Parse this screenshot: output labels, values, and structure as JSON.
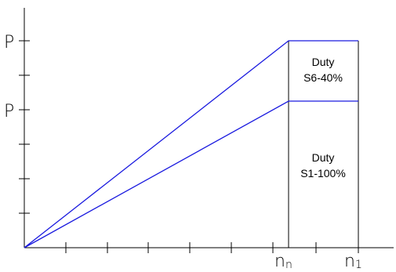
{
  "y_axis": {
    "labels": [
      "P",
      "P"
    ]
  },
  "x_axis": {
    "labels": [
      {
        "main": "n",
        "sub": "n"
      },
      {
        "main": "n",
        "sub": "1"
      }
    ]
  },
  "regions": [
    {
      "line1": "Duty",
      "line2": "S6-40%"
    },
    {
      "line1": "Duty",
      "line2": "S1-100%"
    }
  ],
  "colors": {
    "curve": "#1a1adf",
    "axis": "#000000"
  }
}
